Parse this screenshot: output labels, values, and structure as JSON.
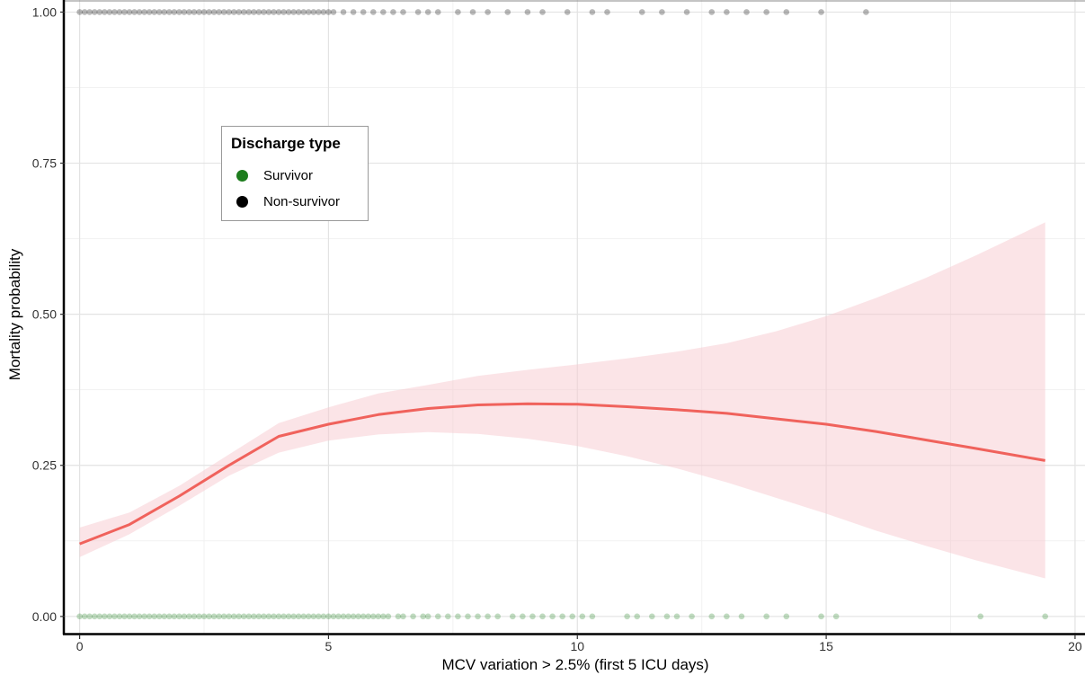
{
  "chart_data": {
    "type": "scatter",
    "title": "",
    "xlabel": "MCV variation > 2.5% (first 5 ICU days)",
    "ylabel": "Mortality probability",
    "xlim": [
      -0.3,
      20.2
    ],
    "ylim": [
      -0.03,
      1.02
    ],
    "x_ticks": [
      0,
      5,
      10,
      15,
      20
    ],
    "x_tick_labels": [
      "0",
      "5",
      "10",
      "15",
      "20"
    ],
    "y_ticks": [
      0.0,
      0.25,
      0.5,
      0.75,
      1.0
    ],
    "y_tick_labels": [
      "0.00",
      "0.25",
      "0.50",
      "0.75",
      "1.00"
    ],
    "grid": true,
    "legend": {
      "title": "Discharge type",
      "placement": "upper-left inside plot",
      "entries": [
        {
          "label": "Survivor",
          "color": "#1e7d1e"
        },
        {
          "label": "Non-survivor",
          "color": "#000000"
        }
      ]
    },
    "series": [
      {
        "name": "Survivor",
        "kind": "points",
        "color": "#1e7d1e",
        "y": 0,
        "x": [
          0,
          0.1,
          0.2,
          0.3,
          0.4,
          0.5,
          0.6,
          0.7,
          0.8,
          0.9,
          1.0,
          1.1,
          1.2,
          1.3,
          1.4,
          1.5,
          1.6,
          1.7,
          1.8,
          1.9,
          2.0,
          2.1,
          2.2,
          2.3,
          2.4,
          2.5,
          2.6,
          2.7,
          2.8,
          2.9,
          3.0,
          3.1,
          3.2,
          3.3,
          3.4,
          3.5,
          3.6,
          3.7,
          3.8,
          3.9,
          4.0,
          4.1,
          4.2,
          4.3,
          4.4,
          4.5,
          4.6,
          4.7,
          4.8,
          4.9,
          5.0,
          5.1,
          5.2,
          5.3,
          5.4,
          5.5,
          5.6,
          5.7,
          5.8,
          5.9,
          6.0,
          6.1,
          6.2,
          6.4,
          6.5,
          6.7,
          6.9,
          7.0,
          7.2,
          7.4,
          7.6,
          7.8,
          8.0,
          8.2,
          8.4,
          8.7,
          8.9,
          9.1,
          9.3,
          9.5,
          9.7,
          9.9,
          10.1,
          10.3,
          11.0,
          11.2,
          11.5,
          11.8,
          12.0,
          12.3,
          12.7,
          13.0,
          13.3,
          13.8,
          14.2,
          14.9,
          15.2,
          18.1,
          19.4
        ]
      },
      {
        "name": "Non-survivor",
        "kind": "points",
        "color": "#000000",
        "y": 1,
        "x": [
          0,
          0.1,
          0.2,
          0.3,
          0.4,
          0.5,
          0.6,
          0.7,
          0.8,
          0.9,
          1.0,
          1.1,
          1.2,
          1.3,
          1.4,
          1.5,
          1.6,
          1.7,
          1.8,
          1.9,
          2.0,
          2.1,
          2.2,
          2.3,
          2.4,
          2.5,
          2.6,
          2.7,
          2.8,
          2.9,
          3.0,
          3.1,
          3.2,
          3.3,
          3.4,
          3.5,
          3.6,
          3.7,
          3.8,
          3.9,
          4.0,
          4.1,
          4.2,
          4.3,
          4.4,
          4.5,
          4.6,
          4.7,
          4.8,
          4.9,
          5.0,
          5.1,
          5.3,
          5.5,
          5.7,
          5.9,
          6.1,
          6.3,
          6.5,
          6.8,
          7.0,
          7.2,
          7.6,
          7.9,
          8.2,
          8.6,
          9.0,
          9.3,
          9.8,
          10.3,
          10.6,
          11.3,
          11.7,
          12.2,
          12.7,
          13.0,
          13.4,
          13.8,
          14.2,
          14.9,
          15.8
        ]
      },
      {
        "name": "",
        "kind": "fit-line",
        "color": "#f0625c",
        "x": [
          0,
          1,
          2,
          3,
          4,
          5,
          6,
          7,
          8,
          9,
          10,
          11,
          12,
          13,
          14,
          15,
          16,
          17,
          18,
          19.4
        ],
        "y": [
          0.12,
          0.152,
          0.199,
          0.25,
          0.298,
          0.318,
          0.334,
          0.344,
          0.35,
          0.352,
          0.351,
          0.347,
          0.342,
          0.336,
          0.327,
          0.318,
          0.306,
          0.292,
          0.278,
          0.258
        ],
        "ci_lower": [
          0.098,
          0.136,
          0.183,
          0.233,
          0.271,
          0.291,
          0.301,
          0.305,
          0.302,
          0.294,
          0.282,
          0.265,
          0.245,
          0.222,
          0.196,
          0.17,
          0.142,
          0.117,
          0.093,
          0.063
        ],
        "ci_upper": [
          0.147,
          0.172,
          0.216,
          0.268,
          0.32,
          0.346,
          0.369,
          0.383,
          0.398,
          0.408,
          0.417,
          0.427,
          0.438,
          0.452,
          0.472,
          0.497,
          0.527,
          0.56,
          0.597,
          0.652
        ]
      }
    ]
  }
}
